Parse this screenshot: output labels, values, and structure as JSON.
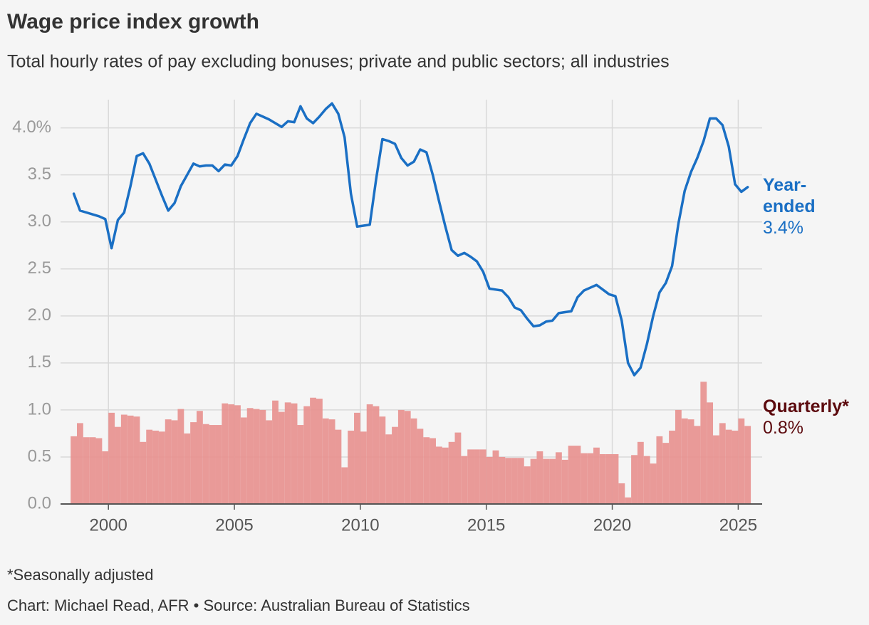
{
  "chart_data": {
    "type": "combo",
    "title": "Wage price index growth",
    "subtitle": "Total hourly rates of pay excluding bonuses; private and public sectors; all industries",
    "footnote": "*Seasonally adjusted",
    "source": "Chart: Michael Read, AFR • Source: Australian Bureau of Statistics",
    "x": [
      1998.625,
      1998.875,
      1999.125,
      1999.375,
      1999.625,
      1999.875,
      2000.125,
      2000.375,
      2000.625,
      2000.875,
      2001.125,
      2001.375,
      2001.625,
      2001.875,
      2002.125,
      2002.375,
      2002.625,
      2002.875,
      2003.125,
      2003.375,
      2003.625,
      2003.875,
      2004.125,
      2004.375,
      2004.625,
      2004.875,
      2005.125,
      2005.375,
      2005.625,
      2005.875,
      2006.125,
      2006.375,
      2006.625,
      2006.875,
      2007.125,
      2007.375,
      2007.625,
      2007.875,
      2008.125,
      2008.375,
      2008.625,
      2008.875,
      2009.125,
      2009.375,
      2009.625,
      2009.875,
      2010.125,
      2010.375,
      2010.625,
      2010.875,
      2011.125,
      2011.375,
      2011.625,
      2011.875,
      2012.125,
      2012.375,
      2012.625,
      2012.875,
      2013.125,
      2013.375,
      2013.625,
      2013.875,
      2014.125,
      2014.375,
      2014.625,
      2014.875,
      2015.125,
      2015.375,
      2015.625,
      2015.875,
      2016.125,
      2016.375,
      2016.625,
      2016.875,
      2017.125,
      2017.375,
      2017.625,
      2017.875,
      2018.125,
      2018.375,
      2018.625,
      2018.875,
      2019.125,
      2019.375,
      2019.625,
      2019.875,
      2020.125,
      2020.375,
      2020.625,
      2020.875,
      2021.125,
      2021.375,
      2021.625,
      2021.875,
      2022.125,
      2022.375,
      2022.625,
      2022.875,
      2023.125,
      2023.375,
      2023.625,
      2023.875,
      2024.125,
      2024.375,
      2024.625,
      2024.875,
      2025.125,
      2025.375
    ],
    "series": [
      {
        "name": "Quarterly*",
        "type": "bar",
        "color": "#e8908e",
        "label_color": "#5c0a0e",
        "end_label": "0.8%",
        "values": [
          0.72,
          0.86,
          0.71,
          0.71,
          0.7,
          0.56,
          0.97,
          0.82,
          0.95,
          0.94,
          0.93,
          0.66,
          0.79,
          0.78,
          0.77,
          0.9,
          0.89,
          1.01,
          0.75,
          0.87,
          0.99,
          0.85,
          0.84,
          0.84,
          1.07,
          1.06,
          1.05,
          0.92,
          1.02,
          1.01,
          1.0,
          0.89,
          1.1,
          0.98,
          1.08,
          1.07,
          0.84,
          1.04,
          1.13,
          1.12,
          0.91,
          0.9,
          0.79,
          0.39,
          0.78,
          0.97,
          0.77,
          1.06,
          1.04,
          0.93,
          0.74,
          0.82,
          1.0,
          0.99,
          0.91,
          0.8,
          0.71,
          0.7,
          0.61,
          0.6,
          0.66,
          0.76,
          0.51,
          0.58,
          0.58,
          0.58,
          0.5,
          0.57,
          0.5,
          0.49,
          0.49,
          0.49,
          0.4,
          0.48,
          0.56,
          0.48,
          0.48,
          0.55,
          0.47,
          0.62,
          0.62,
          0.54,
          0.54,
          0.6,
          0.53,
          0.53,
          0.53,
          0.22,
          0.07,
          0.52,
          0.66,
          0.51,
          0.43,
          0.72,
          0.65,
          0.78,
          1.0,
          0.91,
          0.9,
          0.83,
          1.3,
          1.08,
          0.73,
          0.86,
          0.79,
          0.78,
          0.91,
          0.83
        ]
      },
      {
        "name": "Year-ended",
        "type": "line",
        "color": "#1a6fc4",
        "label_color": "#1a6fc4",
        "end_label": "3.4%",
        "values": [
          3.3,
          3.12,
          3.1,
          3.08,
          3.06,
          3.03,
          2.72,
          3.02,
          3.1,
          3.38,
          3.7,
          3.73,
          3.62,
          3.45,
          3.28,
          3.12,
          3.2,
          3.38,
          3.5,
          3.62,
          3.59,
          3.6,
          3.6,
          3.54,
          3.61,
          3.6,
          3.7,
          3.88,
          4.05,
          4.15,
          4.12,
          4.09,
          4.05,
          4.01,
          4.07,
          4.06,
          4.23,
          4.1,
          4.05,
          4.12,
          4.2,
          4.26,
          4.15,
          3.9,
          3.3,
          2.95,
          2.96,
          2.97,
          3.45,
          3.88,
          3.86,
          3.83,
          3.68,
          3.6,
          3.64,
          3.77,
          3.74,
          3.5,
          3.22,
          2.95,
          2.7,
          2.64,
          2.67,
          2.63,
          2.58,
          2.47,
          2.29,
          2.28,
          2.27,
          2.2,
          2.09,
          2.06,
          1.97,
          1.89,
          1.9,
          1.94,
          1.95,
          2.03,
          2.04,
          2.05,
          2.2,
          2.27,
          2.3,
          2.33,
          2.28,
          2.23,
          2.21,
          1.95,
          1.5,
          1.37,
          1.45,
          1.7,
          2.0,
          2.25,
          2.35,
          2.53,
          2.98,
          3.33,
          3.53,
          3.68,
          3.86,
          4.1,
          4.1,
          4.03,
          3.8,
          3.4,
          3.32,
          3.37
        ]
      }
    ],
    "xlim": [
      1998.1,
      2025.95
    ],
    "xticks": [
      2000,
      2005,
      2010,
      2015,
      2020,
      2025
    ],
    "ylim": [
      0,
      4.3
    ],
    "yticks": [
      {
        "value": 0,
        "label": "0.0"
      },
      {
        "value": 0.5,
        "label": "0.5"
      },
      {
        "value": 1,
        "label": "1.0"
      },
      {
        "value": 1.5,
        "label": "1.5"
      },
      {
        "value": 2,
        "label": "2.0"
      },
      {
        "value": 2.5,
        "label": "2.5"
      },
      {
        "value": 3,
        "label": "3.0"
      },
      {
        "value": 3.5,
        "label": "3.5"
      },
      {
        "value": 4,
        "label": "4.0%"
      }
    ],
    "grid": true
  }
}
